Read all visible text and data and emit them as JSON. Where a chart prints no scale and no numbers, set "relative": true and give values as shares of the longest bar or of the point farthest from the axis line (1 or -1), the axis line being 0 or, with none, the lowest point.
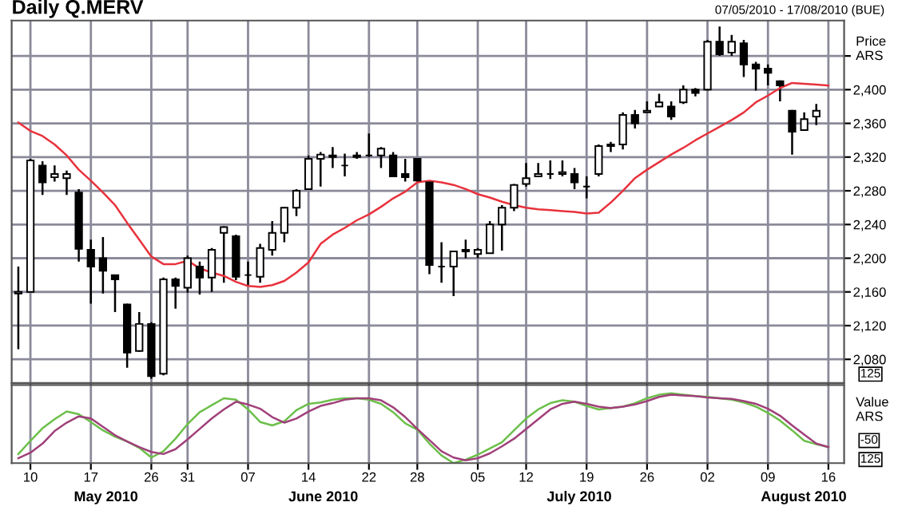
{
  "chart_data": [
    {
      "type": "candlestick",
      "title": "Daily Q.MERV",
      "subtitle": "07/05/2010 - 17/08/2010 (BUE)",
      "ylabel": "Price ARS",
      "categories": [
        null,
        "10",
        null,
        null,
        null,
        null,
        "17",
        null,
        null,
        null,
        null,
        "26",
        null,
        null,
        "31",
        null,
        null,
        null,
        null,
        "07",
        null,
        null,
        null,
        null,
        "14",
        null,
        null,
        null,
        null,
        "22",
        null,
        null,
        null,
        "28",
        null,
        null,
        null,
        null,
        "05",
        null,
        null,
        null,
        "12",
        null,
        null,
        null,
        null,
        "19",
        null,
        null,
        null,
        null,
        "26",
        null,
        null,
        null,
        null,
        "02",
        null,
        null,
        null,
        null,
        "09",
        null,
        null,
        null,
        null,
        "16"
      ],
      "ohlc": [
        [
          2158,
          2190,
          2092,
          2160
        ],
        [
          2160,
          2318,
          2160,
          2316
        ],
        [
          2310,
          2315,
          2275,
          2290
        ],
        [
          2296,
          2310,
          2291,
          2300
        ],
        [
          2295,
          2304,
          2275,
          2300
        ],
        [
          2278,
          2282,
          2196,
          2211
        ],
        [
          2210,
          2222,
          2146,
          2190
        ],
        [
          2200,
          2225,
          2158,
          2185
        ],
        [
          2180,
          2180,
          2136,
          2175
        ],
        [
          2145,
          2146,
          2070,
          2088
        ],
        [
          2090,
          2136,
          2089,
          2122
        ],
        [
          2122,
          2124,
          2057,
          2060
        ],
        [
          2063,
          2177,
          2061,
          2175
        ],
        [
          2175,
          2177,
          2140,
          2167
        ],
        [
          2165,
          2203,
          2159,
          2200
        ],
        [
          2190,
          2196,
          2157,
          2177
        ],
        [
          2177,
          2212,
          2160,
          2210
        ],
        [
          2230,
          2238,
          2171,
          2237
        ],
        [
          2226,
          2228,
          2174,
          2178
        ],
        [
          2180,
          2196,
          2168,
          2180
        ],
        [
          2178,
          2217,
          2171,
          2212
        ],
        [
          2210,
          2244,
          2203,
          2230
        ],
        [
          2230,
          2261,
          2219,
          2260
        ],
        [
          2260,
          2282,
          2250,
          2280
        ],
        [
          2282,
          2322,
          2282,
          2318
        ],
        [
          2318,
          2326,
          2285,
          2323
        ],
        [
          2320,
          2332,
          2307,
          2322
        ],
        [
          2310,
          2324,
          2297,
          2310
        ],
        [
          2320,
          2326,
          2318,
          2322
        ],
        [
          2322,
          2348,
          2320,
          2322
        ],
        [
          2322,
          2332,
          2307,
          2330
        ],
        [
          2322,
          2326,
          2297,
          2297
        ],
        [
          2300,
          2318,
          2291,
          2296
        ],
        [
          2318,
          2318,
          2291,
          2292
        ],
        [
          2290,
          2291,
          2181,
          2192
        ],
        [
          2190,
          2219,
          2171,
          2190
        ],
        [
          2190,
          2209,
          2155,
          2208
        ],
        [
          2208,
          2222,
          2200,
          2210
        ],
        [
          2205,
          2212,
          2200,
          2210
        ],
        [
          2206,
          2244,
          2206,
          2240
        ],
        [
          2240,
          2263,
          2209,
          2260
        ],
        [
          2260,
          2288,
          2256,
          2287
        ],
        [
          2288,
          2313,
          2285,
          2295
        ],
        [
          2297,
          2313,
          2297,
          2300
        ],
        [
          2300,
          2316,
          2294,
          2300
        ],
        [
          2300,
          2316,
          2297,
          2302
        ],
        [
          2300,
          2307,
          2282,
          2290
        ],
        [
          2285,
          2297,
          2271,
          2285
        ],
        [
          2300,
          2335,
          2297,
          2333
        ],
        [
          2333,
          2338,
          2326,
          2335
        ],
        [
          2335,
          2373,
          2329,
          2370
        ],
        [
          2370,
          2376,
          2354,
          2360
        ],
        [
          2373,
          2386,
          2373,
          2375
        ],
        [
          2380,
          2395,
          2380,
          2385
        ],
        [
          2380,
          2386,
          2364,
          2368
        ],
        [
          2385,
          2405,
          2383,
          2400
        ],
        [
          2400,
          2402,
          2392,
          2396
        ],
        [
          2400,
          2459,
          2399,
          2457
        ],
        [
          2457,
          2475,
          2440,
          2442
        ],
        [
          2444,
          2465,
          2440,
          2457
        ],
        [
          2455,
          2459,
          2415,
          2430
        ],
        [
          2430,
          2433,
          2399,
          2425
        ],
        [
          2425,
          2430,
          2405,
          2420
        ],
        [
          2410,
          2411,
          2386,
          2405
        ],
        [
          2375,
          2376,
          2323,
          2350
        ],
        [
          2352,
          2373,
          2351,
          2365
        ],
        [
          2368,
          2383,
          2358,
          2375
        ],
        null
      ],
      "series": [
        {
          "type": "line",
          "color": "#e8323c",
          "values": [
            2361,
            2351,
            2345,
            2335,
            2322,
            2305,
            2292,
            2278,
            2263,
            2242,
            2222,
            2202,
            2193,
            2193,
            2197,
            2188,
            2183,
            2179,
            2172,
            2167,
            2166,
            2168,
            2173,
            2183,
            2195,
            2217,
            2228,
            2236,
            2245,
            2252,
            2261,
            2271,
            2279,
            2290,
            2292,
            2290,
            2287,
            2282,
            2276,
            2272,
            2267,
            2263,
            2260,
            2258,
            2257,
            2256,
            2255,
            2253,
            2254,
            2266,
            2280,
            2295,
            2305,
            2314,
            2323,
            2331,
            2340,
            2348,
            2356,
            2364,
            2373,
            2385,
            2393,
            2402,
            2408,
            2407,
            2406,
            2405
          ]
        }
      ],
      "ylim": [
        2052,
        2482
      ],
      "yticks": [
        {
          "value": 2080,
          "label": "2,080"
        },
        {
          "value": 2120,
          "label": "2,120"
        },
        {
          "value": 2160,
          "label": "2,160"
        },
        {
          "value": 2200,
          "label": "2,200"
        },
        {
          "value": 2240,
          "label": "2,240"
        },
        {
          "value": 2280,
          "label": "2,280"
        },
        {
          "value": 2320,
          "label": "2,320"
        },
        {
          "value": 2360,
          "label": "2,360"
        },
        {
          "value": 2400,
          "label": "2,400"
        },
        {
          "value": 2440,
          "label": null
        }
      ],
      "grid": true,
      "tick_labels": "y",
      "annotations": [
        "125"
      ]
    },
    {
      "type": "line",
      "relative": true,
      "ylabel": "Value ARS",
      "categories": [
        null,
        "10",
        null,
        null,
        null,
        null,
        "17",
        null,
        null,
        null,
        null,
        "26",
        null,
        null,
        "31",
        null,
        null,
        null,
        null,
        "07",
        null,
        null,
        null,
        null,
        "14",
        null,
        null,
        null,
        null,
        "22",
        null,
        null,
        null,
        "28",
        null,
        null,
        null,
        null,
        "05",
        null,
        null,
        null,
        "12",
        null,
        null,
        null,
        null,
        "19",
        null,
        null,
        null,
        null,
        "26",
        null,
        null,
        null,
        null,
        "02",
        null,
        null,
        null,
        null,
        "09",
        null,
        null,
        null,
        null,
        "16"
      ],
      "series": [
        {
          "color": "#6cbf4a",
          "values": [
            0.13,
            0.32,
            0.5,
            0.63,
            0.74,
            0.7,
            0.59,
            0.47,
            0.38,
            0.31,
            0.22,
            0.08,
            0.17,
            0.35,
            0.56,
            0.73,
            0.83,
            0.93,
            0.91,
            0.77,
            0.59,
            0.54,
            0.6,
            0.76,
            0.85,
            0.87,
            0.91,
            0.93,
            0.93,
            0.91,
            0.85,
            0.73,
            0.57,
            0.48,
            0.28,
            0.11,
            0,
            0.05,
            0.12,
            0.21,
            0.3,
            0.47,
            0.64,
            0.77,
            0.86,
            0.9,
            0.88,
            0.82,
            0.77,
            0.79,
            0.81,
            0.86,
            0.93,
            0.98,
            1,
            0.98,
            0.96,
            0.95,
            0.93,
            0.91,
            0.87,
            0.81,
            0.72,
            0.61,
            0.47,
            0.32,
            0.27,
            0.23
          ]
        },
        {
          "color": "#a0407a",
          "values": [
            0.07,
            0.15,
            0.28,
            0.46,
            0.58,
            0.67,
            0.64,
            0.52,
            0.4,
            0.31,
            0.23,
            0.16,
            0.13,
            0.2,
            0.34,
            0.49,
            0.64,
            0.77,
            0.88,
            0.84,
            0.78,
            0.66,
            0.58,
            0.64,
            0.74,
            0.82,
            0.86,
            0.91,
            0.93,
            0.93,
            0.9,
            0.8,
            0.66,
            0.49,
            0.33,
            0.17,
            0.08,
            0.04,
            0.07,
            0.14,
            0.24,
            0.35,
            0.49,
            0.63,
            0.77,
            0.85,
            0.88,
            0.85,
            0.81,
            0.79,
            0.81,
            0.84,
            0.89,
            0.95,
            0.98,
            0.97,
            0.96,
            0.94,
            0.93,
            0.92,
            0.89,
            0.85,
            0.78,
            0.68,
            0.54,
            0.41,
            0.28,
            0.23
          ]
        }
      ],
      "grid": "x",
      "tick_labels": "x",
      "annotations": [
        "-50",
        "125",
        "May 2010",
        "June 2010",
        "July 2010",
        "August 2010"
      ]
    }
  ]
}
